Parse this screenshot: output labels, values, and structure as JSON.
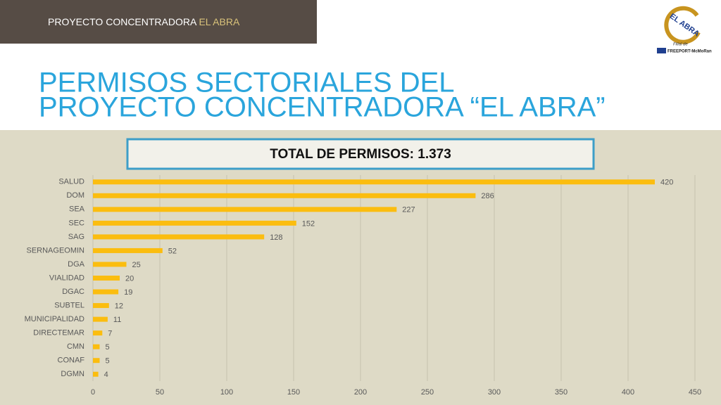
{
  "header": {
    "prefix": "PROYECTO CONCENTRADORA",
    "highlight": "EL ABRA"
  },
  "logo": {
    "name": "EL ABRA",
    "subsidiary": "Filial de",
    "parent": "FREEPORT-McMoRan"
  },
  "title": [
    "PERMISOS SECTORIALES DEL",
    "PROYECTO CONCENTRADORA “EL ABRA”"
  ],
  "chart_data": {
    "type": "hbar",
    "annotation": "TOTAL DE PERMISOS: 1.373",
    "categories": [
      "SALUD",
      "DOM",
      "SEA",
      "SEC",
      "SAG",
      "SERNAGEOMIN",
      "DGA",
      "VIALIDAD",
      "DGAC",
      "SUBTEL",
      "MUNICIPALIDAD",
      "DIRECTEMAR",
      "CMN",
      "CONAF",
      "DGMN"
    ],
    "values": [
      420,
      286,
      227,
      152,
      128,
      52,
      25,
      20,
      19,
      12,
      11,
      7,
      5,
      5,
      4
    ],
    "color": "#fbbd0f",
    "xlim": [
      0,
      450
    ],
    "xticks": [
      0,
      50,
      100,
      150,
      200,
      250,
      300,
      350,
      400,
      450
    ],
    "grid": true
  }
}
